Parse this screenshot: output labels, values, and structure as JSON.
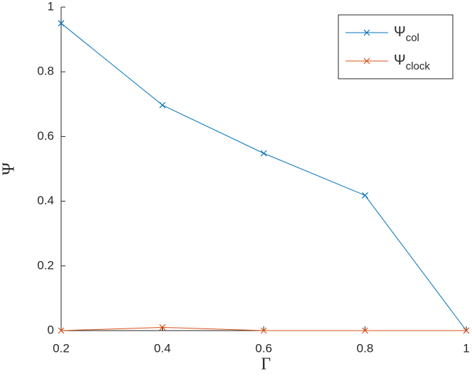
{
  "chart_data": {
    "type": "line",
    "x_label": "Γ",
    "y_label": "Ψ",
    "x": [
      0.2,
      0.4,
      0.6,
      0.8,
      1
    ],
    "series": [
      {
        "name": "Ψ_{col}",
        "color": "#0072BD",
        "values": [
          0.95,
          0.697,
          0.548,
          0.418,
          0
        ]
      },
      {
        "name": "Ψ_{clock}",
        "color": "#D95319",
        "values": [
          0,
          0.01,
          0,
          0,
          0
        ]
      }
    ],
    "xlim": [
      0.2,
      1
    ],
    "ylim": [
      0,
      1
    ],
    "xticks": [
      0.2,
      0.4,
      0.6,
      0.8,
      1
    ],
    "yticks": [
      0,
      0.2,
      0.4,
      0.6,
      0.8,
      1
    ],
    "legend": "top-right",
    "marker": "x"
  }
}
